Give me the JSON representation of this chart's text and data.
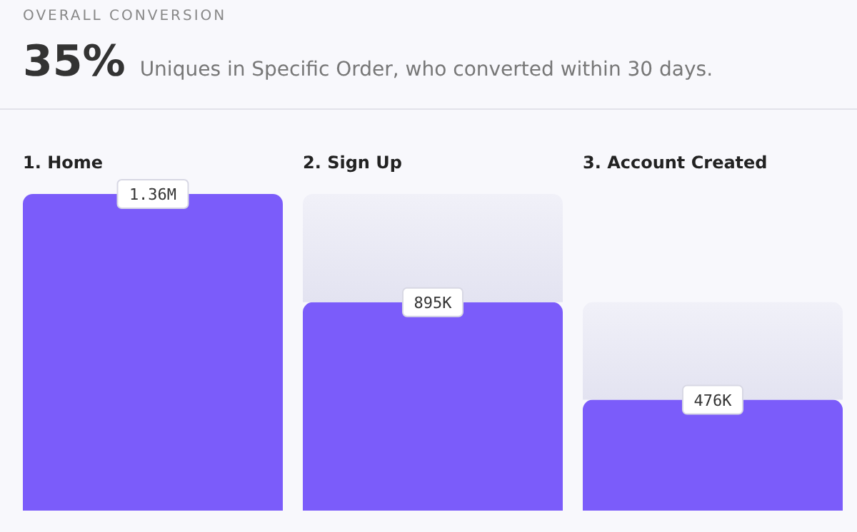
{
  "chart_data": {
    "type": "bar",
    "title": "OVERALL CONVERSION",
    "subtitle": "Uniques in Specific Order, who converted within 30 days.",
    "annotations": [
      "35%"
    ],
    "categories": [
      "1. Home",
      "2. Sign Up",
      "3. Account Created"
    ],
    "stacked": true,
    "series": [
      {
        "color": "#7b5cfa",
        "values": [
          1360000,
          895000,
          476000
        ],
        "value_labels": [
          "1.36M",
          "895K",
          "476K"
        ]
      },
      {
        "color": "#e3e3f1",
        "values": [
          null,
          465000,
          419000
        ]
      }
    ],
    "legend": false,
    "grid": false
  }
}
